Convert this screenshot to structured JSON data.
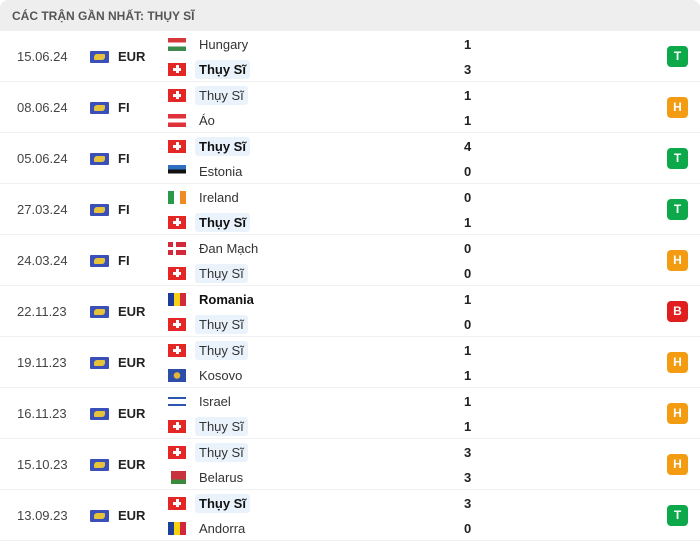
{
  "header": {
    "title": "CÁC TRẬN GẦN NHẤT: THỤY SĨ"
  },
  "colors": {
    "T": "#0da84a",
    "H": "#f39c12",
    "B": "#e01e1e"
  },
  "matches": [
    {
      "date": "15.06.24",
      "league": "EUR",
      "home": {
        "name": "Hungary",
        "flag": "hungary",
        "score": "1",
        "bold": false,
        "me": false
      },
      "away": {
        "name": "Thụy Sĩ",
        "flag": "switzerland",
        "score": "3",
        "bold": true,
        "me": true
      },
      "result": "T"
    },
    {
      "date": "08.06.24",
      "league": "FI",
      "home": {
        "name": "Thụy Sĩ",
        "flag": "switzerland",
        "score": "1",
        "bold": false,
        "me": true
      },
      "away": {
        "name": "Áo",
        "flag": "austria",
        "score": "1",
        "bold": false,
        "me": false
      },
      "result": "H"
    },
    {
      "date": "05.06.24",
      "league": "FI",
      "home": {
        "name": "Thụy Sĩ",
        "flag": "switzerland",
        "score": "4",
        "bold": true,
        "me": true
      },
      "away": {
        "name": "Estonia",
        "flag": "estonia",
        "score": "0",
        "bold": false,
        "me": false
      },
      "result": "T"
    },
    {
      "date": "27.03.24",
      "league": "FI",
      "home": {
        "name": "Ireland",
        "flag": "ireland",
        "score": "0",
        "bold": false,
        "me": false
      },
      "away": {
        "name": "Thụy Sĩ",
        "flag": "switzerland",
        "score": "1",
        "bold": true,
        "me": true
      },
      "result": "T"
    },
    {
      "date": "24.03.24",
      "league": "FI",
      "home": {
        "name": "Đan Mạch",
        "flag": "denmark",
        "score": "0",
        "bold": false,
        "me": false
      },
      "away": {
        "name": "Thụy Sĩ",
        "flag": "switzerland",
        "score": "0",
        "bold": false,
        "me": true
      },
      "result": "H"
    },
    {
      "date": "22.11.23",
      "league": "EUR",
      "home": {
        "name": "Romania",
        "flag": "romania",
        "score": "1",
        "bold": true,
        "me": false
      },
      "away": {
        "name": "Thụy Sĩ",
        "flag": "switzerland",
        "score": "0",
        "bold": false,
        "me": true
      },
      "result": "B"
    },
    {
      "date": "19.11.23",
      "league": "EUR",
      "home": {
        "name": "Thụy Sĩ",
        "flag": "switzerland",
        "score": "1",
        "bold": false,
        "me": true
      },
      "away": {
        "name": "Kosovo",
        "flag": "kosovo",
        "score": "1",
        "bold": false,
        "me": false
      },
      "result": "H"
    },
    {
      "date": "16.11.23",
      "league": "EUR",
      "home": {
        "name": "Israel",
        "flag": "israel",
        "score": "1",
        "bold": false,
        "me": false
      },
      "away": {
        "name": "Thụy Sĩ",
        "flag": "switzerland",
        "score": "1",
        "bold": false,
        "me": true
      },
      "result": "H"
    },
    {
      "date": "15.10.23",
      "league": "EUR",
      "home": {
        "name": "Thụy Sĩ",
        "flag": "switzerland",
        "score": "3",
        "bold": false,
        "me": true
      },
      "away": {
        "name": "Belarus",
        "flag": "belarus",
        "score": "3",
        "bold": false,
        "me": false
      },
      "result": "H"
    },
    {
      "date": "13.09.23",
      "league": "EUR",
      "home": {
        "name": "Thụy Sĩ",
        "flag": "switzerland",
        "score": "3",
        "bold": true,
        "me": true
      },
      "away": {
        "name": "Andorra",
        "flag": "andorra",
        "score": "0",
        "bold": false,
        "me": false
      },
      "result": "T"
    }
  ]
}
